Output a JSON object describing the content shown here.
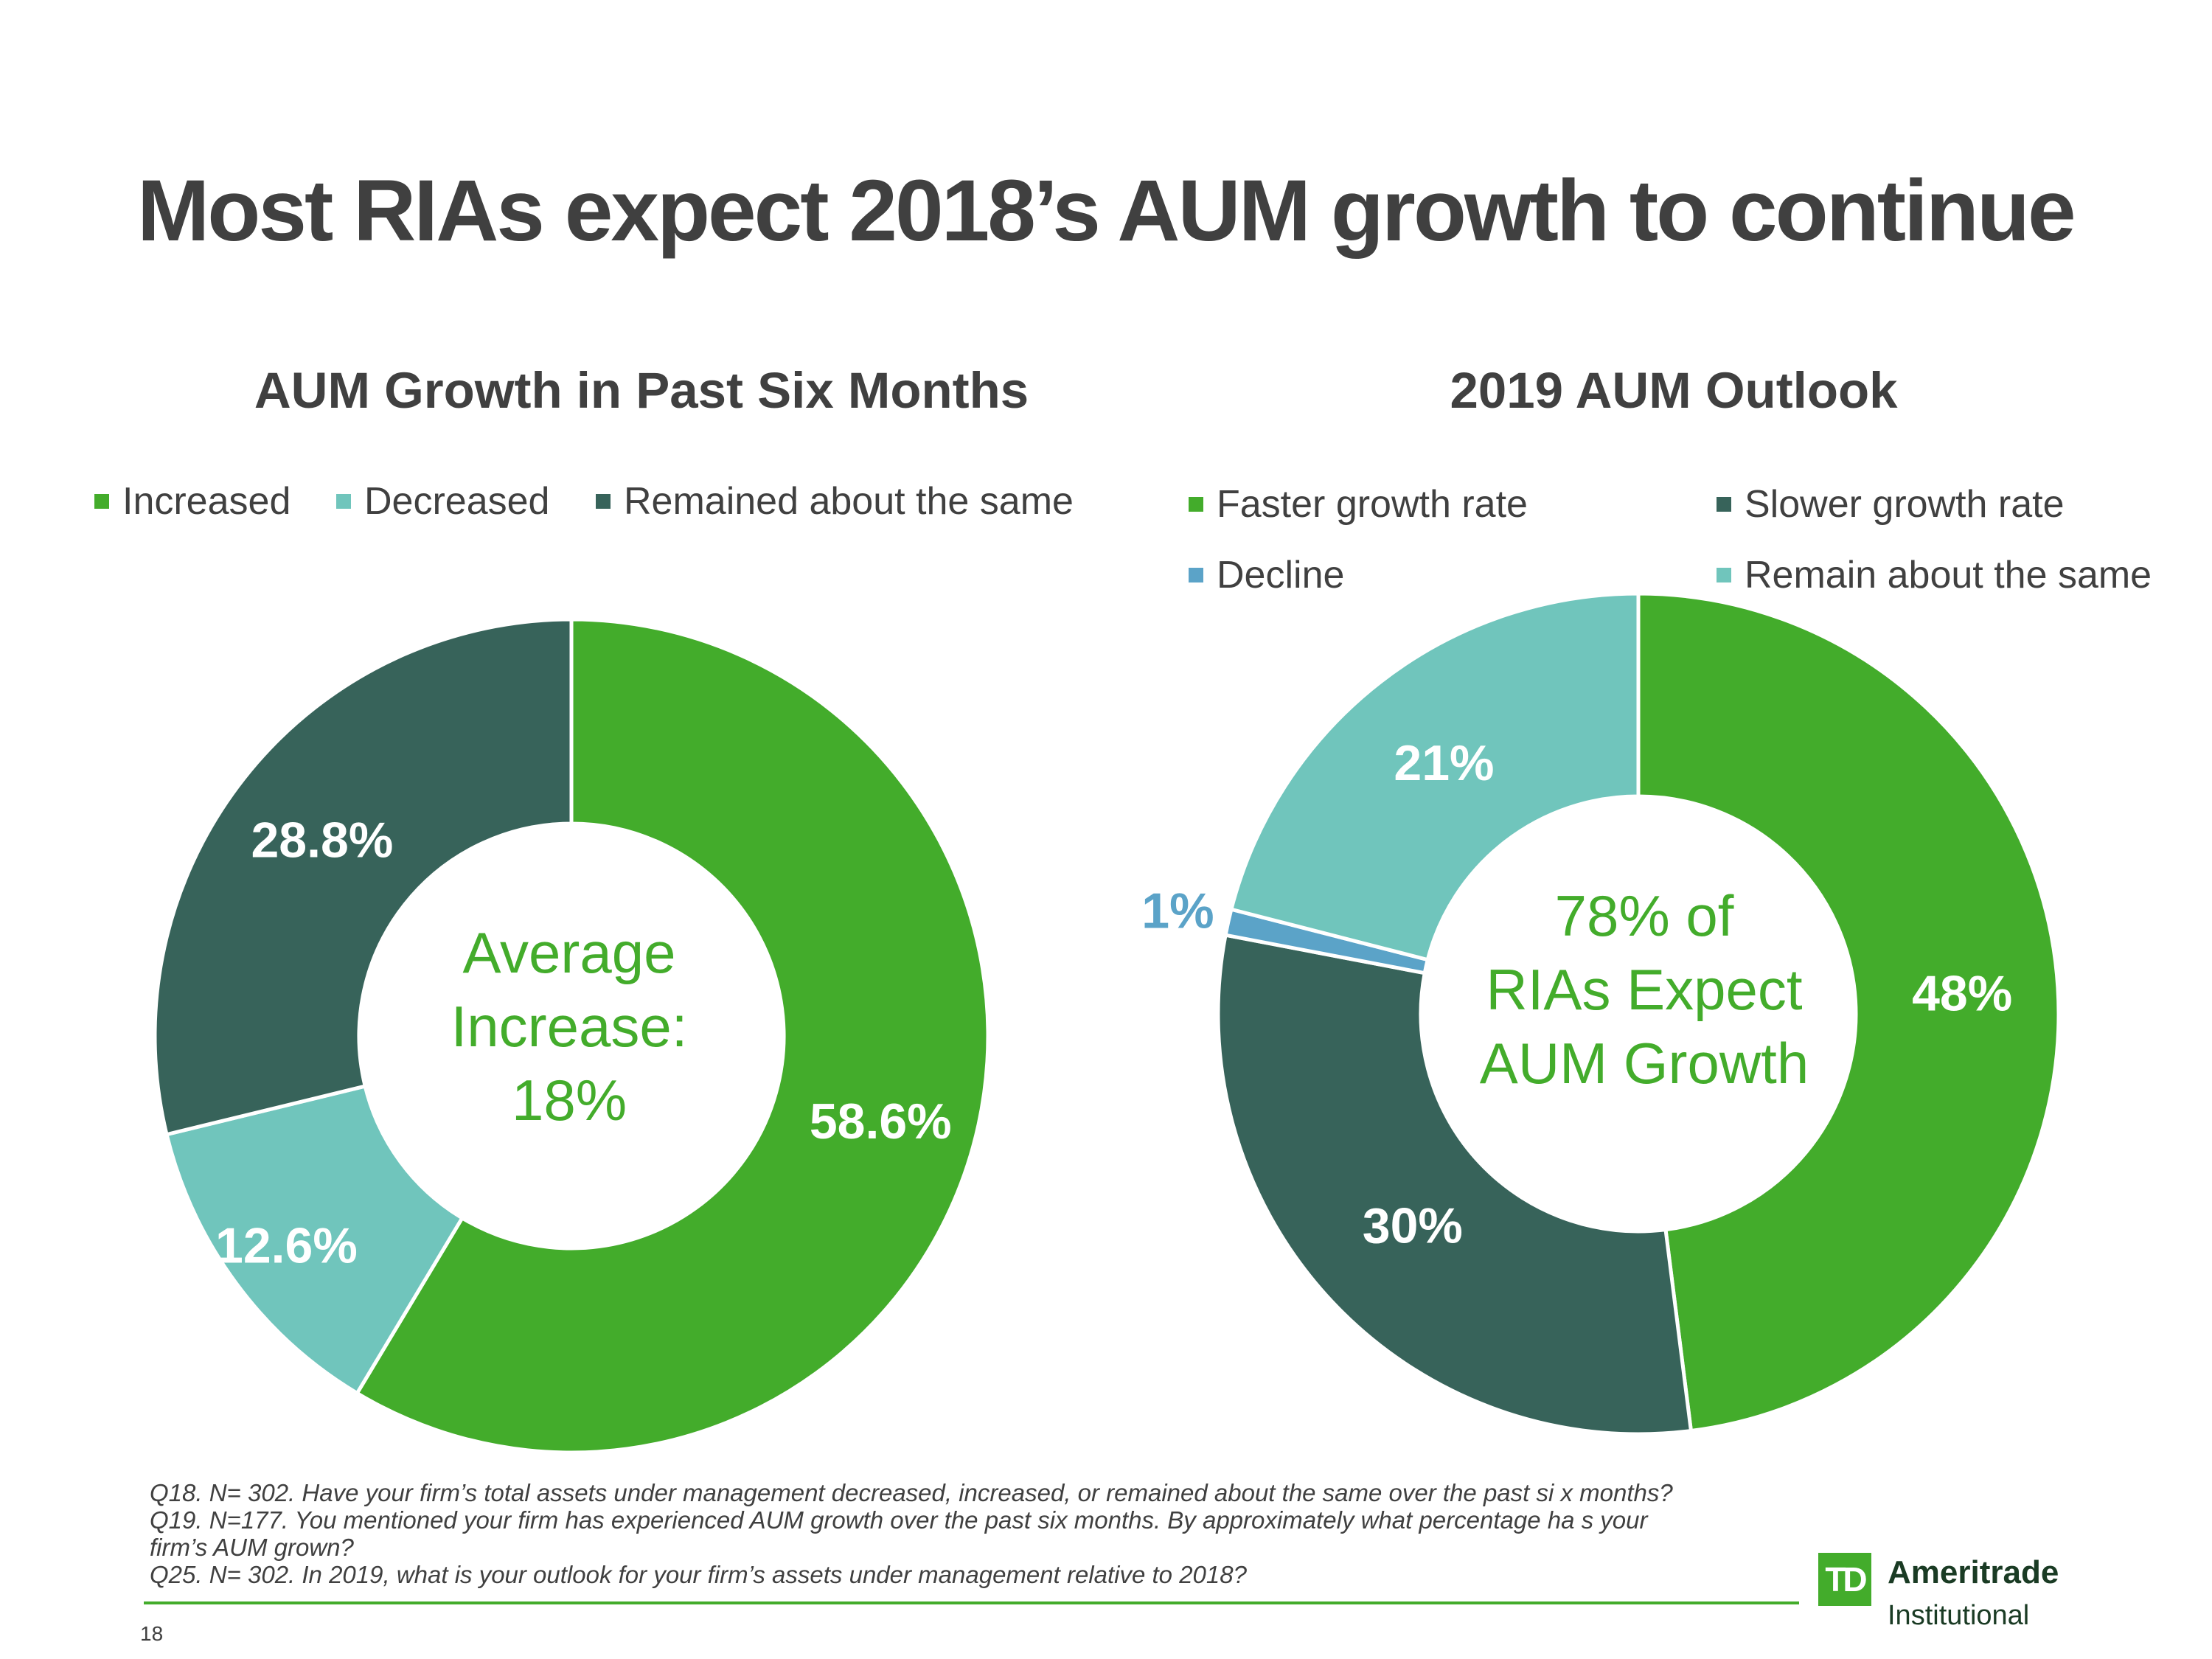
{
  "slide": {
    "title": "Most RIAs expect 2018’s AUM growth to continue",
    "page_number": "18"
  },
  "colors": {
    "green": "#43AC2B",
    "teal": "#70C5BC",
    "dark_green": "#37635A",
    "blue": "#5BA3C8",
    "text": "#404040"
  },
  "chart_data": [
    {
      "type": "pie",
      "title": "AUM Growth in Past Six Months",
      "legend": [
        "Increased",
        "Decreased",
        "Remained about the same"
      ],
      "center_label": [
        "Average",
        "Increase:",
        "18%"
      ],
      "slices": [
        {
          "label": "Increased",
          "value": 58.6,
          "display": "58.6%",
          "color": "#43AC2B"
        },
        {
          "label": "Decreased",
          "value": 12.6,
          "display": "12.6%",
          "color": "#70C5BC"
        },
        {
          "label": "Remained about the same",
          "value": 28.8,
          "display": "28.8%",
          "color": "#37635A"
        }
      ]
    },
    {
      "type": "pie",
      "title": "2019 AUM Outlook",
      "legend": [
        "Faster growth rate",
        "Slower growth rate",
        "Decline",
        "Remain about the same"
      ],
      "center_label": [
        "78% of",
        "RIAs Expect",
        "AUM Growth"
      ],
      "slices": [
        {
          "label": "Faster growth rate",
          "value": 48,
          "display": "48%",
          "color": "#43AC2B"
        },
        {
          "label": "Slower growth rate",
          "value": 30,
          "display": "30%",
          "color": "#37635A"
        },
        {
          "label": "Decline",
          "value": 1,
          "display": "1%",
          "color": "#5BA3C8"
        },
        {
          "label": "Remain about the same",
          "value": 21,
          "display": "21%",
          "color": "#70C5BC"
        }
      ]
    }
  ],
  "footnote": {
    "q18": "Q18. N= 302. Have your firm’s total assets under management decreased, increased, or remained about the same over the past si x months?",
    "q19_line1": "Q19. N=177.  You mentioned your firm has experienced AUM growth over the past six months.  By approximately what percentage ha s your",
    "q19_line2": "firm’s AUM grown?",
    "q25": "Q25. N= 302.  In 2019, what is your outlook for your firm’s assets under management relative to 2018?"
  },
  "logo": {
    "mark": "TD",
    "name": "Ameritrade",
    "sub": "Institutional"
  }
}
